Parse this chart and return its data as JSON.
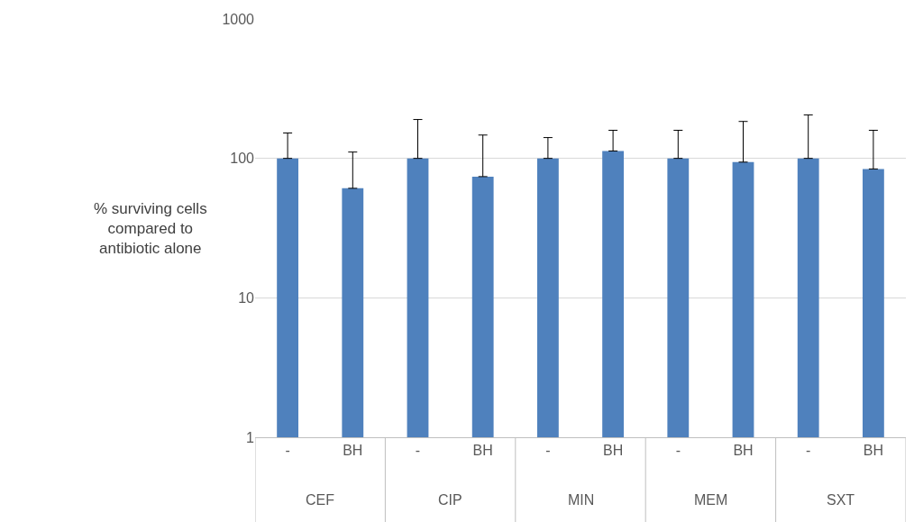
{
  "chart_data": {
    "type": "bar",
    "ylabel": "% surviving cells compared to antibiotic alone",
    "categories": [
      "-",
      "BH",
      "-",
      "BH",
      "-",
      "BH",
      "-",
      "BH",
      "-",
      "BH"
    ],
    "values": [
      100,
      61,
      100,
      74,
      100,
      113,
      100,
      94,
      100,
      84
    ],
    "errors": [
      [
        100,
        152
      ],
      [
        61,
        111
      ],
      [
        100,
        190
      ],
      [
        74,
        147
      ],
      [
        100,
        141
      ],
      [
        113,
        159
      ],
      [
        100,
        159
      ],
      [
        94,
        184
      ],
      [
        100,
        205
      ],
      [
        84,
        159
      ]
    ],
    "color": "#4f81bd",
    "annotations": [
      "CEF",
      "CIP",
      "MIN",
      "MEM",
      "SXT"
    ],
    "log": true,
    "ylim": [
      1,
      1000
    ],
    "yticks": [
      1,
      10,
      100,
      1000
    ],
    "grid": "y"
  }
}
